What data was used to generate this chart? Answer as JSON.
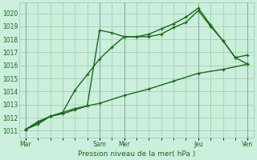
{
  "xlabel": "Pression niveau de la mer( hPa )",
  "bg_color": "#cceedd",
  "grid_color": "#99ccaa",
  "line_color": "#1a6b1a",
  "ylim": [
    1010.5,
    1020.8
  ],
  "yticks": [
    1011,
    1012,
    1013,
    1014,
    1015,
    1016,
    1017,
    1018,
    1019,
    1020
  ],
  "xtick_labels": [
    "Mar",
    "Sam",
    "Mer",
    "Jeu",
    "Ven"
  ],
  "vline_color": "#88aaaa",
  "line1_x": [
    0,
    1,
    2,
    3,
    4,
    5,
    6,
    7,
    8,
    9,
    10,
    11,
    12,
    13,
    14,
    15,
    16,
    17,
    18
  ],
  "line1_y": [
    1011.1,
    1011.5,
    1012.1,
    1012.4,
    1014.1,
    1015.3,
    1016.5,
    1017.4,
    1018.2,
    1018.2,
    1018.2,
    1018.4,
    1018.9,
    1019.3,
    1020.2,
    1019.0,
    1017.9,
    1016.6,
    1016.1
  ],
  "line2_x": [
    0,
    1,
    2,
    3,
    4,
    5,
    6,
    7,
    8,
    9,
    10,
    11,
    12,
    13,
    14,
    15,
    16,
    17,
    18
  ],
  "line2_y": [
    1011.1,
    1011.7,
    1012.1,
    1012.3,
    1012.6,
    1012.9,
    1018.7,
    1018.5,
    1018.2,
    1018.2,
    1018.4,
    1018.8,
    1019.2,
    1019.7,
    1020.4,
    1019.1,
    1017.9,
    1016.6,
    1016.8
  ],
  "line3_x": [
    0,
    2,
    4,
    6,
    8,
    10,
    12,
    14,
    16,
    18
  ],
  "line3_y": [
    1011.1,
    1012.1,
    1012.7,
    1013.1,
    1013.7,
    1014.2,
    1014.8,
    1015.4,
    1015.7,
    1016.1
  ],
  "num_points": 19,
  "vline_x": [
    0,
    6,
    8,
    14,
    18
  ],
  "marker_size": 3.0,
  "linewidth": 1.0
}
